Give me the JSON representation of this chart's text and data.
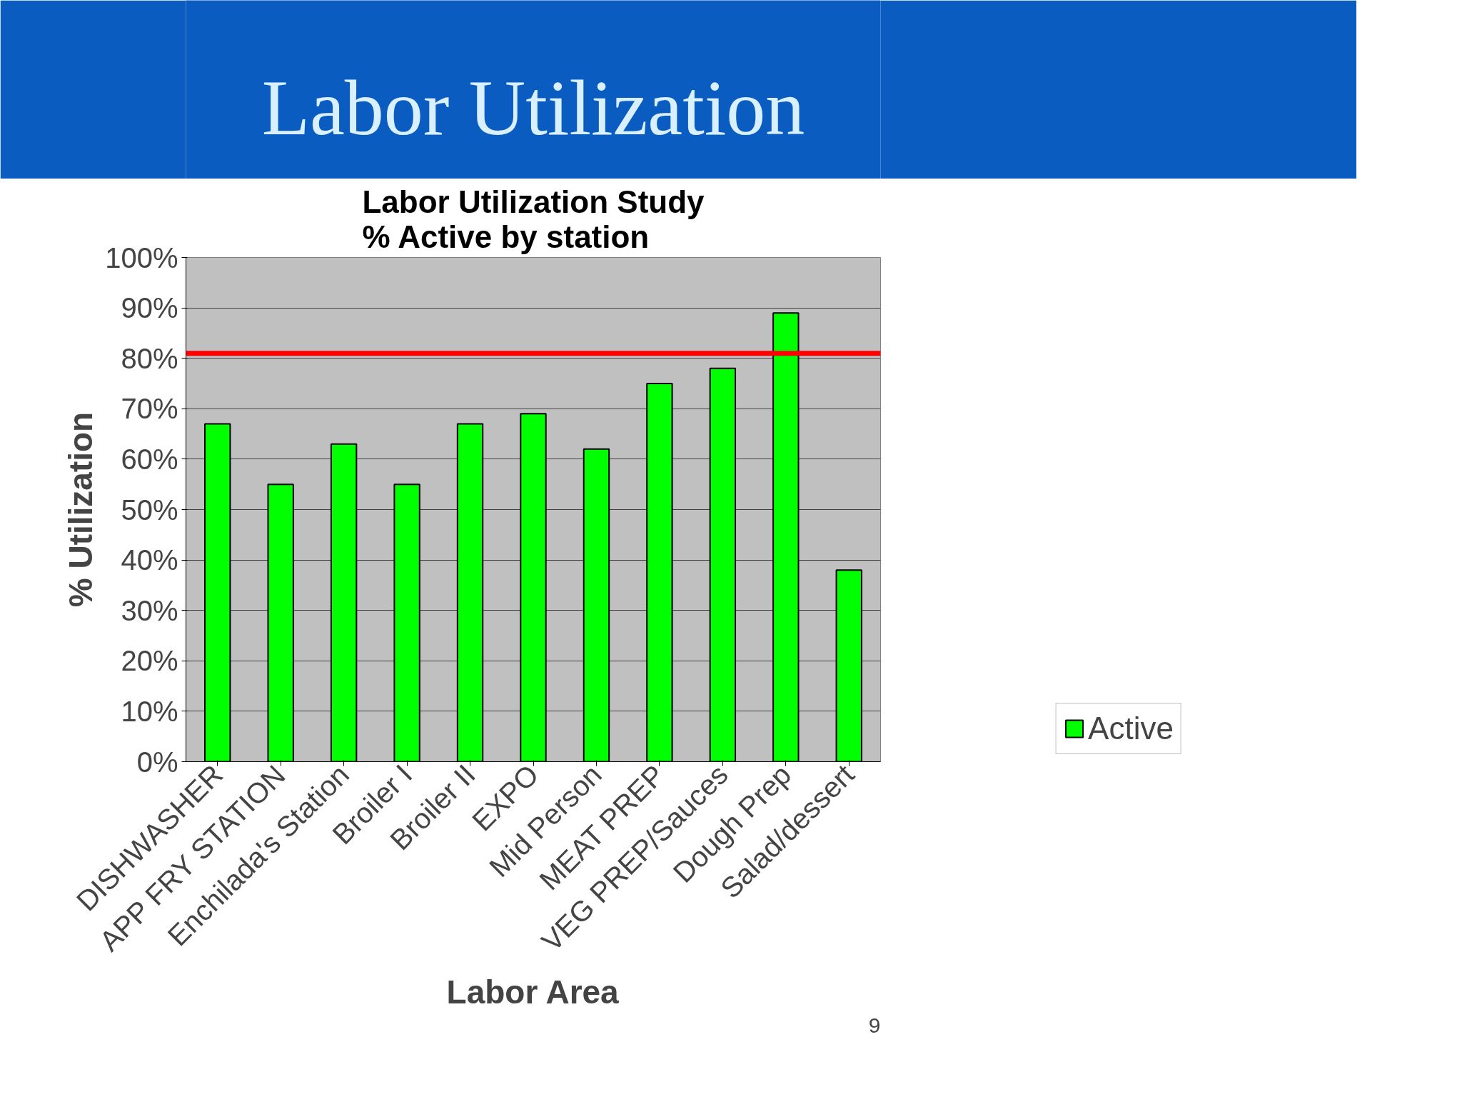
{
  "chart_data": {
    "type": "bar",
    "title": "Labor Utilization",
    "subtitle": "Labor Utilization Study\n% Active by station",
    "xlabel": "Labor Area",
    "ylabel": "% Utilization",
    "categories": [
      "DISHWASHER",
      "APP FRY STATION",
      "Enchilada's Station",
      "Broiler I",
      "Broiler II",
      "EXPO",
      "Mid Person",
      "MEAT PREP",
      "VEG PREP/Sauces",
      "Dough Prep",
      "Salad/dessert"
    ],
    "series": [
      {
        "name": "Active",
        "color": "#00ff00",
        "values": [
          67,
          55,
          63,
          55,
          67,
          69,
          62,
          75,
          78,
          89,
          38
        ]
      }
    ],
    "ylim": [
      0,
      100
    ],
    "yticks": [
      {
        "value": 0,
        "label": "0%"
      },
      {
        "value": 10,
        "label": "10%"
      },
      {
        "value": 20,
        "label": "20%"
      },
      {
        "value": 30,
        "label": "30%"
      },
      {
        "value": 40,
        "label": "40%"
      },
      {
        "value": 50,
        "label": "50%"
      },
      {
        "value": 60,
        "label": "60%"
      },
      {
        "value": 70,
        "label": "70%"
      },
      {
        "value": 80,
        "label": "80%"
      },
      {
        "value": 90,
        "label": "90%"
      },
      {
        "value": 100,
        "label": "100%"
      }
    ],
    "grid": "y",
    "legend": "bottom right",
    "ref_lines": [
      {
        "axis": "y",
        "value": 81,
        "color": "#ff0000"
      }
    ],
    "annotations": [
      "9"
    ]
  }
}
